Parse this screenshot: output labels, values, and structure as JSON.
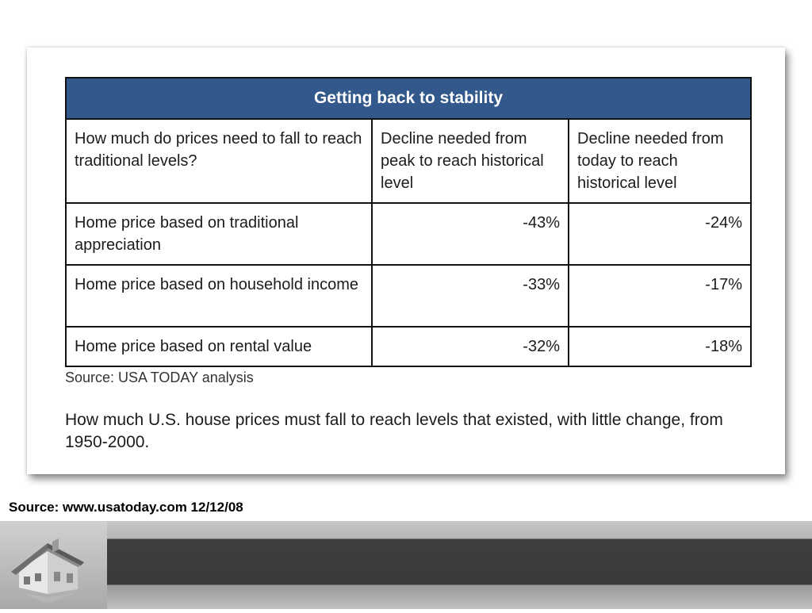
{
  "table": {
    "title": "Getting back to stability",
    "header": [
      "How much do prices need to fall to reach traditional levels?",
      "Decline needed from peak to reach historical level",
      "Decline needed from today to reach historical level"
    ],
    "rows": [
      [
        "Home price based on traditional appreciation",
        "-43%",
        "-24%"
      ],
      [
        "Home price based on household income",
        "-33%",
        "-17%"
      ],
      [
        "Home price based on rental value",
        "-32%",
        "-18%"
      ]
    ]
  },
  "source": "Source: USA TODAY analysis",
  "caption": "How much U.S. house prices must fall to reach levels that existed, with little change, from 1950-2000.",
  "footer_source": "Source: www.usatoday.com 12/12/08",
  "colors": {
    "title_bar": "#33598c",
    "footer_dark": "#3e3e3e"
  },
  "icons": [
    "house-icon"
  ]
}
